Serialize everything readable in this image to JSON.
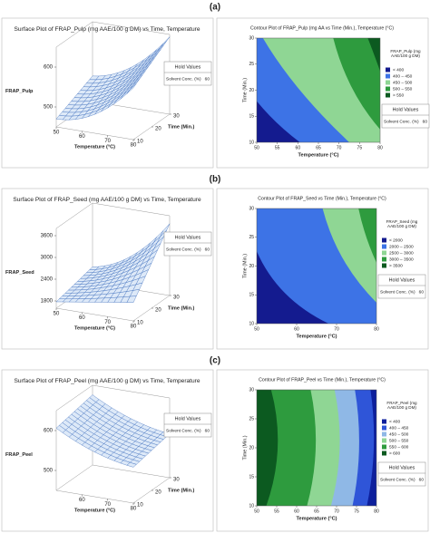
{
  "panels": [
    {
      "label": "(a)",
      "surface": {
        "title": "Surface Plot of FRAP_Pulp (mg AAE/100 g DM) vs Time, Temperature",
        "zlabel": "FRAP_Pulp",
        "zlim": [
          450,
          650
        ],
        "zticks": [
          500,
          600
        ],
        "xlabel": "Temperature (°C)",
        "xlim": [
          50,
          80
        ],
        "xticks": [
          50,
          60,
          70,
          80
        ],
        "ylabel": "Time (Min.)",
        "ylim": [
          10,
          30
        ],
        "yticks": [
          10,
          20,
          30
        ],
        "hold": {
          "title": "Hold Values",
          "name": "Solvent Conc. (%)",
          "value": 60
        }
      },
      "contour": {
        "title": "Contour Plot of FRAP_Pulp (mg AA vs Time (Min.), Temperature (°C)",
        "xlabel": "Temperature (°C)",
        "xlim": [
          50,
          80
        ],
        "xticks": [
          50,
          55,
          60,
          65,
          70,
          75,
          80
        ],
        "ylabel": "Time (Min.)",
        "ylim": [
          10,
          30
        ],
        "yticks": [
          10,
          15,
          20,
          25,
          30
        ],
        "legend": {
          "title": "FRAP_Pulp (mg AAE/100 g DM)",
          "items": [
            {
              "label": "< 400",
              "color": "#141b8f"
            },
            {
              "label": "400 – 450",
              "color": "#3d73e6"
            },
            {
              "label": "450 – 500",
              "color": "#8fd694"
            },
            {
              "label": "500 – 550",
              "color": "#2e9b3e"
            },
            {
              "label": "> 550",
              "color": "#0c5a20"
            }
          ]
        },
        "hold": {
          "title": "Hold Values",
          "name": "Solvent Conc. (%)",
          "value": 60
        }
      }
    },
    {
      "label": "(b)",
      "surface": {
        "title": "Surface Plot of FRAP_Seed (mg AAE/100 g DM) vs Time, Temperature",
        "zlabel": "FRAP_Seed",
        "zlim": [
          1600,
          3800
        ],
        "zticks": [
          1800,
          2400,
          3000,
          3600
        ],
        "xlabel": "Temperature (°C)",
        "xlim": [
          50,
          80
        ],
        "xticks": [
          50,
          60,
          70,
          80
        ],
        "ylabel": "Time (Min.)",
        "ylim": [
          10,
          30
        ],
        "yticks": [
          10,
          20,
          30
        ],
        "hold": {
          "title": "Hold Values",
          "name": "Solvent Conc. (%)",
          "value": 60
        }
      },
      "contour": {
        "title": "Contour Plot of FRAP_Seed vs Time (Min.), Temperature (°C)",
        "xlabel": "Temperature (°C)",
        "xlim": [
          50,
          80
        ],
        "xticks": [
          50,
          60,
          70,
          80
        ],
        "ylabel": "Time (Min.)",
        "ylim": [
          10,
          30
        ],
        "yticks": [
          10,
          15,
          20,
          25,
          30
        ],
        "legend": {
          "title": "FRAP_Seed (mg AAE/100 g DM)",
          "items": [
            {
              "label": "< 2000",
              "color": "#141b8f"
            },
            {
              "label": "2000 – 2500",
              "color": "#3d73e6"
            },
            {
              "label": "2500 – 3000",
              "color": "#8fd694"
            },
            {
              "label": "3000 – 3500",
              "color": "#2e9b3e"
            },
            {
              "label": "> 3500",
              "color": "#0c5a20"
            }
          ]
        },
        "hold": {
          "title": "Hold Values",
          "name": "Solvent Conc. (%)",
          "value": 60
        }
      }
    },
    {
      "label": "(c)",
      "surface": {
        "title": "Surface Plot of FRAP_Peel (mg AAE/100 g DM) vs Time, Temperature",
        "zlabel": "FRAP_Peel",
        "zlim": [
          450,
          650
        ],
        "zticks": [
          500,
          600
        ],
        "xlabel": "Temperature (°C)",
        "xlim": [
          50,
          80
        ],
        "xticks": [
          60,
          70,
          80
        ],
        "ylabel": "Time (Min.)",
        "ylim": [
          10,
          30
        ],
        "yticks": [
          10,
          20,
          30
        ],
        "hold": {
          "title": "Hold Values",
          "name": "Solvent Conc. (%)",
          "value": 60
        }
      },
      "contour": {
        "title": "Contour Plot of FRAP_Peel vs Time (Min.), Temperature (°C)",
        "xlabel": "Temperature (°C)",
        "xlim": [
          50,
          80
        ],
        "xticks": [
          50,
          55,
          60,
          65,
          70,
          75,
          80
        ],
        "ylabel": "Time (Min.)",
        "ylim": [
          10,
          30
        ],
        "yticks": [
          10,
          15,
          20,
          25,
          30
        ],
        "legend": {
          "title": "FRAP_Peel (mg AAE/100 g DM)",
          "items": [
            {
              "label": "< 400",
              "color": "#0d1f9c"
            },
            {
              "label": "400 – 450",
              "color": "#2f55d8"
            },
            {
              "label": "450 – 500",
              "color": "#8fb8e6"
            },
            {
              "label": "500 – 550",
              "color": "#8fd694"
            },
            {
              "label": "550 – 600",
              "color": "#2e9b3e"
            },
            {
              "label": "> 600",
              "color": "#0c5a20"
            }
          ]
        },
        "hold": {
          "title": "Hold Values",
          "name": "Solvent Conc. (%)",
          "value": 60
        }
      }
    }
  ]
}
